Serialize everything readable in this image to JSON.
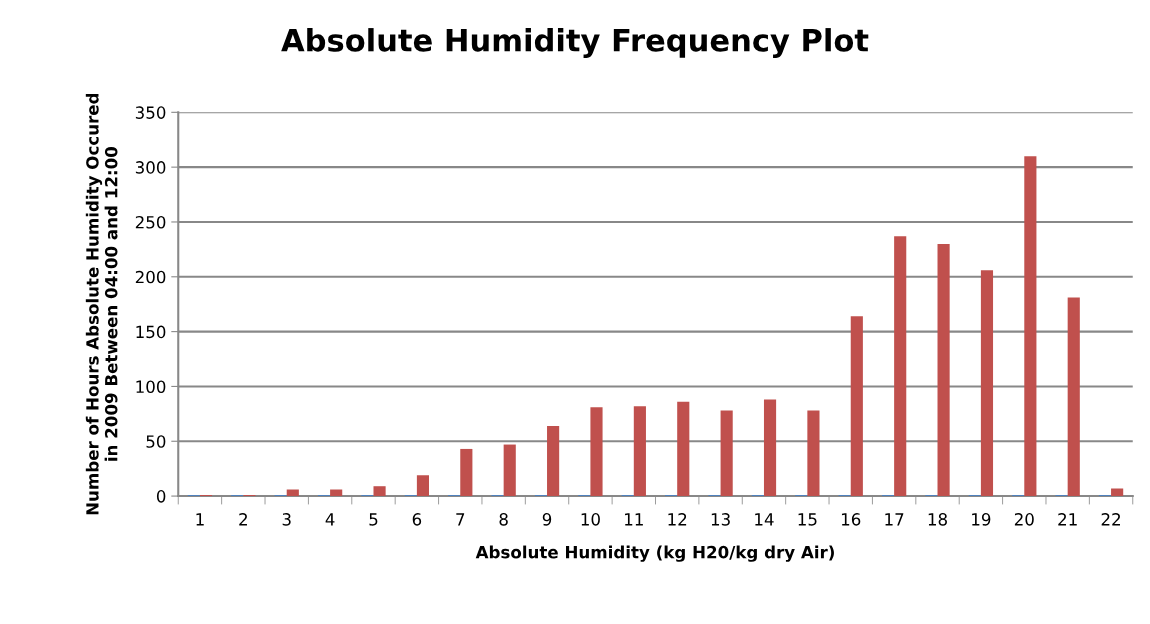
{
  "chart_data": {
    "type": "bar",
    "title": "Absolute Humidity Frequency Plot",
    "xlabel": "Absolute Humidity (kg H20/kg dry Air)",
    "ylabel": "Number of Hours Absolute Humidity Occured\nin 2009 Between 04:00 and 12:00",
    "categories": [
      "1",
      "2",
      "3",
      "4",
      "5",
      "6",
      "7",
      "8",
      "9",
      "10",
      "11",
      "12",
      "13",
      "14",
      "15",
      "16",
      "17",
      "18",
      "19",
      "20",
      "21",
      "22"
    ],
    "series": [
      {
        "color": "#4f81bd",
        "values": [
          1,
          1,
          1,
          1,
          1,
          1,
          1,
          1,
          1,
          1,
          1,
          1,
          1,
          1,
          1,
          1,
          1,
          1,
          1,
          1,
          1,
          1
        ]
      },
      {
        "color": "#c0504d",
        "values": [
          1,
          1,
          6,
          6,
          9,
          19,
          43,
          47,
          64,
          81,
          82,
          86,
          78,
          88,
          78,
          164,
          237,
          230,
          206,
          310,
          181,
          7
        ]
      }
    ],
    "ylim": [
      0,
      350
    ],
    "yticks": [
      0,
      50,
      100,
      150,
      200,
      250,
      300,
      350
    ],
    "grid": "y",
    "legend": false
  }
}
